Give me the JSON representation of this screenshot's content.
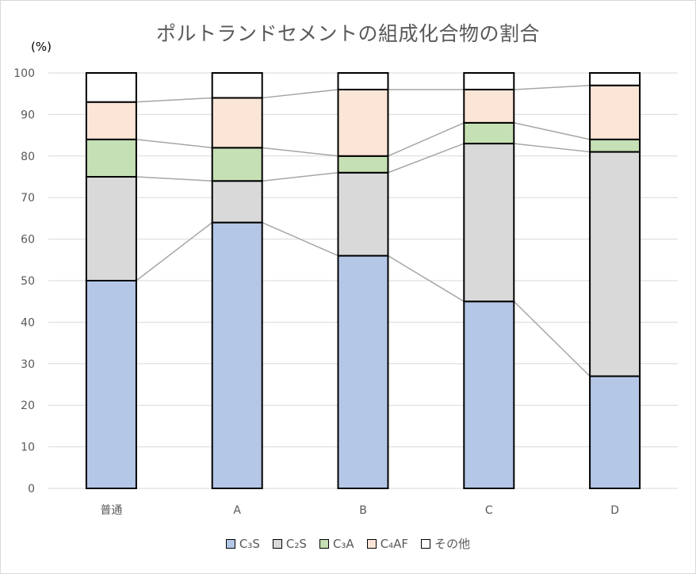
{
  "chart_data": {
    "type": "bar",
    "stacked": true,
    "title": "ポルトランドセメントの組成化合物の割合",
    "ylabel": "(%)",
    "xlabel": "",
    "categories": [
      "普通",
      "A",
      "B",
      "C",
      "D"
    ],
    "ylim": [
      0,
      100
    ],
    "yticks": [
      0,
      10,
      20,
      30,
      40,
      50,
      60,
      70,
      80,
      90,
      100
    ],
    "grid": true,
    "series_lines": true,
    "legend_position": "bottom",
    "series": [
      {
        "name": "C₃S",
        "color": "#b4c7e7",
        "values": [
          50,
          64,
          56,
          45,
          27
        ]
      },
      {
        "name": "C₂S",
        "color": "#d9d9d9",
        "values": [
          25,
          10,
          20,
          38,
          54
        ]
      },
      {
        "name": "C₃A",
        "color": "#c5e0b4",
        "values": [
          9,
          8,
          4,
          5,
          3
        ]
      },
      {
        "name": "C₄AF",
        "color": "#fbe5d6",
        "values": [
          9,
          12,
          16,
          8,
          13
        ]
      },
      {
        "name": "その他",
        "color": "#ffffff",
        "values": [
          7,
          6,
          4,
          4,
          3
        ]
      }
    ]
  }
}
